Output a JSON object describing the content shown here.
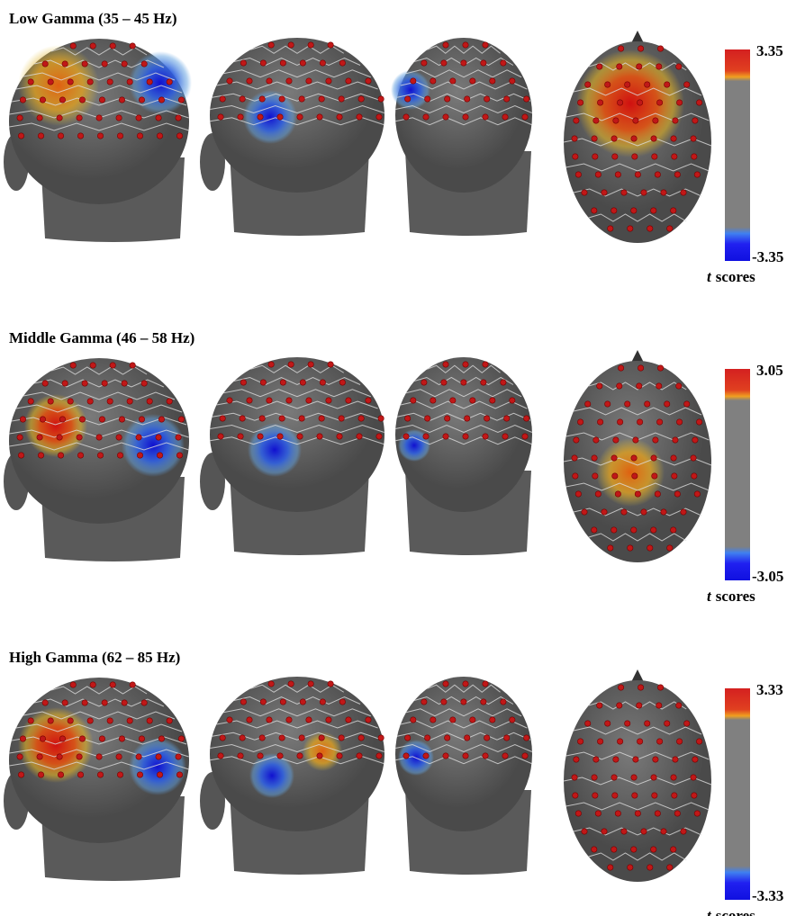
{
  "panels": [
    {
      "title": "Low Gamma (35 – 45 Hz)",
      "colorbar": {
        "max": "3.35",
        "min": "-3.35",
        "label_var": "t",
        "label_text": "scores"
      }
    },
    {
      "title": "Middle Gamma (46 – 58 Hz)",
      "colorbar": {
        "max": "3.05",
        "min": "-3.05",
        "label_var": "t",
        "label_text": "scores"
      }
    },
    {
      "title": "High Gamma (62 – 85 Hz)",
      "colorbar": {
        "max": "3.33",
        "min": "-3.33",
        "label_var": "t",
        "label_text": "scores"
      }
    }
  ]
}
